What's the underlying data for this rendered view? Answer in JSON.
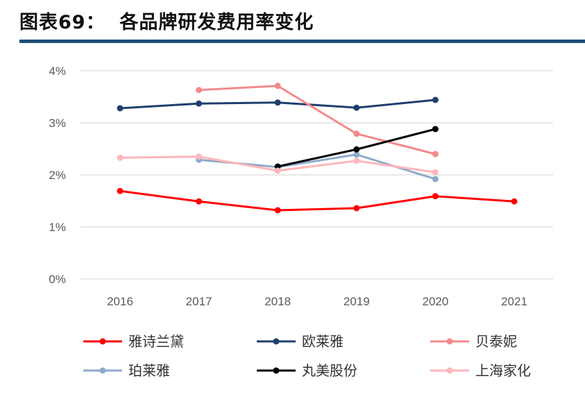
{
  "title": "图表69：  各品牌研发费用率变化",
  "chart_data": {
    "type": "line",
    "title": "图表69：  各品牌研发费用率变化",
    "categories": [
      "2016",
      "2017",
      "2018",
      "2019",
      "2020",
      "2021"
    ],
    "y_ticks": [
      "0%",
      "1%",
      "2%",
      "3%",
      "4%"
    ],
    "ylim": [
      0,
      4
    ],
    "y_unit": "%",
    "grid": "horizontal",
    "legend_position": "bottom",
    "series": [
      {
        "name": "雅诗兰黛",
        "color": "#FF0000",
        "values": [
          1.69,
          1.49,
          1.32,
          1.36,
          1.59,
          1.49
        ]
      },
      {
        "name": "欧莱雅",
        "color": "#1F3F6E",
        "values": [
          3.28,
          3.37,
          3.39,
          3.29,
          3.44,
          null
        ]
      },
      {
        "name": "贝泰妮",
        "color": "#F28A8C",
        "values": [
          null,
          3.63,
          3.71,
          2.79,
          2.4,
          null
        ]
      },
      {
        "name": "珀莱雅",
        "color": "#8FAACB",
        "values": [
          null,
          2.29,
          2.15,
          2.39,
          1.92,
          null
        ]
      },
      {
        "name": "丸美股份",
        "color": "#000000",
        "values": [
          null,
          null,
          2.16,
          2.49,
          2.88,
          null
        ]
      },
      {
        "name": "上海家化",
        "color": "#FFB6BA",
        "values": [
          2.33,
          2.35,
          2.08,
          2.27,
          2.05,
          null
        ]
      }
    ]
  },
  "colors": {
    "rule": "#1F4E79",
    "grid": "#D9D9D9"
  }
}
